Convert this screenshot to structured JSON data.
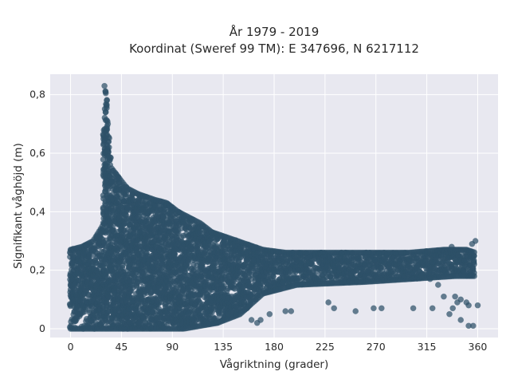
{
  "chart_data": {
    "type": "scatter",
    "title_lines": [
      "År 1979 - 2019",
      "Koordinat (Sweref 99 TM): E 347696, N 6217112"
    ],
    "xlabel": "Vågriktning (grader)",
    "ylabel": "Signifikant våghöjd (m)",
    "xlim": [
      -18,
      378
    ],
    "ylim": [
      -0.03,
      0.87
    ],
    "xticks": [
      0,
      45,
      90,
      135,
      180,
      225,
      270,
      315,
      360
    ],
    "xtick_labels": [
      "0",
      "45",
      "90",
      "135",
      "180",
      "225",
      "270",
      "315",
      "360"
    ],
    "yticks": [
      0,
      0.2,
      0.4,
      0.6,
      0.8
    ],
    "ytick_labels": [
      "0",
      "0,2",
      "0,4",
      "0,6",
      "0,8"
    ],
    "grid": true,
    "marker_color": "#2e5068",
    "plot_background": "#e8e8f0",
    "envelope": {
      "description_points": "upper limit of wave height per direction band, in data units",
      "upper": [
        [
          0,
          0.27
        ],
        [
          10,
          0.28
        ],
        [
          20,
          0.3
        ],
        [
          28,
          0.35
        ],
        [
          30,
          0.82
        ],
        [
          32,
          0.8
        ],
        [
          34,
          0.62
        ],
        [
          36,
          0.55
        ],
        [
          42,
          0.52
        ],
        [
          50,
          0.48
        ],
        [
          60,
          0.46
        ],
        [
          75,
          0.44
        ],
        [
          85,
          0.43
        ],
        [
          95,
          0.4
        ],
        [
          105,
          0.38
        ],
        [
          115,
          0.36
        ],
        [
          125,
          0.33
        ],
        [
          140,
          0.31
        ],
        [
          155,
          0.29
        ],
        [
          170,
          0.27
        ],
        [
          190,
          0.26
        ],
        [
          220,
          0.26
        ],
        [
          260,
          0.26
        ],
        [
          300,
          0.26
        ],
        [
          330,
          0.27
        ],
        [
          350,
          0.27
        ],
        [
          358,
          0.26
        ]
      ],
      "lower": [
        [
          0,
          0.0
        ],
        [
          30,
          0.0
        ],
        [
          60,
          0.0
        ],
        [
          100,
          0.0
        ],
        [
          130,
          0.02
        ],
        [
          150,
          0.05
        ],
        [
          170,
          0.12
        ],
        [
          200,
          0.15
        ],
        [
          260,
          0.16
        ],
        [
          300,
          0.17
        ],
        [
          340,
          0.18
        ],
        [
          358,
          0.18
        ]
      ]
    },
    "notable_points": [
      {
        "x": 30,
        "y": 0.83
      },
      {
        "x": 31,
        "y": 0.81
      },
      {
        "x": 32,
        "y": 0.78
      },
      {
        "x": 31,
        "y": 0.74
      },
      {
        "x": 33,
        "y": 0.7
      },
      {
        "x": 32,
        "y": 0.66
      },
      {
        "x": 34,
        "y": 0.62
      },
      {
        "x": 33,
        "y": 0.58
      },
      {
        "x": 35,
        "y": 0.56
      },
      {
        "x": 37,
        "y": 0.54
      },
      {
        "x": 40,
        "y": 0.53
      },
      {
        "x": 358,
        "y": 0.3
      },
      {
        "x": 355,
        "y": 0.29
      },
      {
        "x": 337,
        "y": 0.28
      },
      {
        "x": 340,
        "y": 0.11
      },
      {
        "x": 345,
        "y": 0.1
      },
      {
        "x": 350,
        "y": 0.09
      },
      {
        "x": 352,
        "y": 0.08
      },
      {
        "x": 335,
        "y": 0.05
      },
      {
        "x": 345,
        "y": 0.03
      },
      {
        "x": 352,
        "y": 0.01
      },
      {
        "x": 356,
        "y": 0.01
      },
      {
        "x": 338,
        "y": 0.07
      },
      {
        "x": 342,
        "y": 0.09
      },
      {
        "x": 330,
        "y": 0.11
      },
      {
        "x": 320,
        "y": 0.07
      },
      {
        "x": 303,
        "y": 0.07
      },
      {
        "x": 275,
        "y": 0.07
      },
      {
        "x": 268,
        "y": 0.07
      },
      {
        "x": 252,
        "y": 0.06
      },
      {
        "x": 233,
        "y": 0.07
      },
      {
        "x": 228,
        "y": 0.09
      },
      {
        "x": 195,
        "y": 0.06
      },
      {
        "x": 190,
        "y": 0.06
      },
      {
        "x": 176,
        "y": 0.05
      },
      {
        "x": 168,
        "y": 0.03
      },
      {
        "x": 165,
        "y": 0.02
      },
      {
        "x": 160,
        "y": 0.03
      },
      {
        "x": 150,
        "y": 0.07
      },
      {
        "x": 140,
        "y": 0.05
      },
      {
        "x": 318,
        "y": 0.17
      },
      {
        "x": 325,
        "y": 0.15
      },
      {
        "x": 310,
        "y": 0.18
      },
      {
        "x": 295,
        "y": 0.18
      },
      {
        "x": 360,
        "y": 0.08
      },
      {
        "x": 0,
        "y": 0.15
      },
      {
        "x": 2,
        "y": 0.1
      },
      {
        "x": 1,
        "y": 0.17
      }
    ]
  }
}
